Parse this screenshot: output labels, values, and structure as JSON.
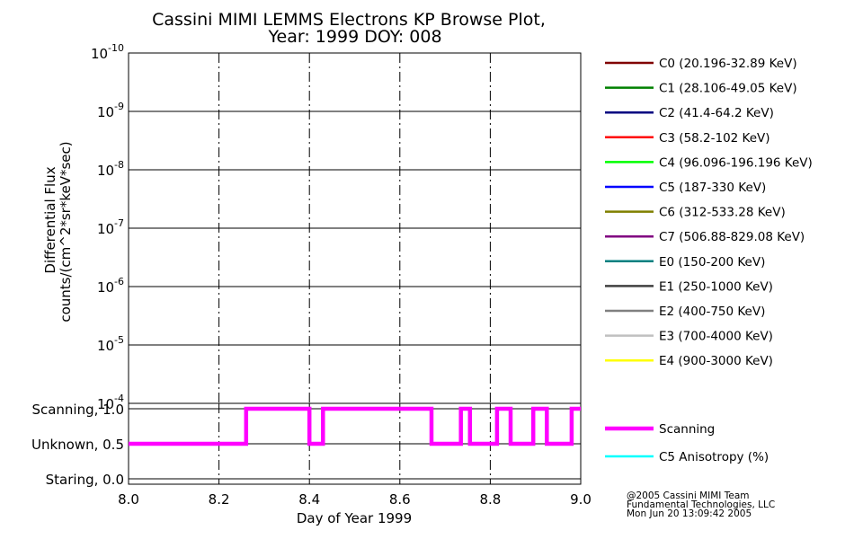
{
  "title": "Cassini MIMI LEMMS Electrons KP Browse Plot,",
  "subtitle": "Year: 1999 DOY: 008",
  "credit": [
    "@2005 Cassini MIMI Team",
    "Fundamental Technologies, LLC",
    "Mon Jun 20 13:09:42 2005"
  ],
  "chart_data": [
    {
      "type": "line",
      "ylabel_lines": [
        "Differential Flux",
        "counts/(cm^2*sr*keV*sec)"
      ],
      "y_scale": "log",
      "y_axis_reversed": true,
      "ylim": [
        1e-10,
        0.0001
      ],
      "y_tick_exponents": [
        "-10",
        "-9",
        "-8",
        "-7",
        "-6",
        "-5",
        "-4"
      ],
      "grid": true,
      "vertical_dashed_lines_at_x": [
        8.2,
        8.4,
        8.6,
        8.8
      ],
      "legend_position": "right",
      "series": [
        {
          "name": "C0 (20.196-32.89 KeV)",
          "color": "#800000",
          "values": []
        },
        {
          "name": "C1 (28.106-49.05 KeV)",
          "color": "#008000",
          "values": []
        },
        {
          "name": "C2 (41.4-64.2 KeV)",
          "color": "#000080",
          "values": []
        },
        {
          "name": "C3 (58.2-102 KeV)",
          "color": "#ff0000",
          "values": []
        },
        {
          "name": "C4 (96.096-196.196 KeV)",
          "color": "#00ff00",
          "values": []
        },
        {
          "name": "C5 (187-330 KeV)",
          "color": "#0000ff",
          "values": []
        },
        {
          "name": "C6 (312-533.28 KeV)",
          "color": "#808000",
          "values": []
        },
        {
          "name": "C7 (506.88-829.08 KeV)",
          "color": "#800080",
          "values": []
        },
        {
          "name": "E0 (150-200 KeV)",
          "color": "#008080",
          "values": []
        },
        {
          "name": "E1 (250-1000 KeV)",
          "color": "#404040",
          "values": []
        },
        {
          "name": "E2 (400-750 KeV)",
          "color": "#808080",
          "values": []
        },
        {
          "name": "E3 (700-4000 KeV)",
          "color": "#c0c0c0",
          "values": []
        },
        {
          "name": "E4 (900-3000 KeV)",
          "color": "#ffff00",
          "values": []
        }
      ]
    },
    {
      "type": "line",
      "xlabel": "Day of Year 1999",
      "xlim": [
        8.0,
        9.0
      ],
      "x_ticks": [
        "8.0",
        "8.2",
        "8.4",
        "8.6",
        "8.8",
        "9.0"
      ],
      "ylim": [
        0.0,
        1.0
      ],
      "y_tick_labels": [
        {
          "value": 1.0,
          "label": "Scanning, 1.0"
        },
        {
          "value": 0.5,
          "label": "Unknown, 0.5"
        },
        {
          "value": 0.0,
          "label": "Staring, 0.0"
        }
      ],
      "grid": true,
      "legend_position": "right",
      "series": [
        {
          "name": "Scanning",
          "color": "#ff00ff",
          "step": true,
          "x": [
            8.0,
            8.26,
            8.26,
            8.4,
            8.4,
            8.43,
            8.43,
            8.67,
            8.67,
            8.735,
            8.735,
            8.755,
            8.755,
            8.815,
            8.815,
            8.845,
            8.845,
            8.895,
            8.895,
            8.925,
            8.925,
            8.98,
            8.98,
            9.0
          ],
          "values": [
            0.5,
            0.5,
            1.0,
            1.0,
            0.5,
            0.5,
            1.0,
            1.0,
            0.5,
            0.5,
            1.0,
            1.0,
            0.5,
            0.5,
            1.0,
            1.0,
            0.5,
            0.5,
            1.0,
            1.0,
            0.5,
            0.5,
            1.0,
            1.0
          ]
        },
        {
          "name": "C5 Anisotropy (%)",
          "color": "#00ffff",
          "values": []
        }
      ]
    }
  ]
}
